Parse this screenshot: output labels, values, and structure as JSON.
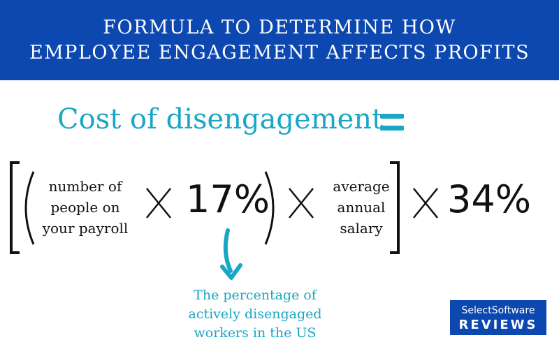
{
  "header": {
    "line1": "FORMULA TO DETERMINE HOW",
    "line2": "EMPLOYEE ENGAGEMENT AFFECTS PROFITS"
  },
  "equation": {
    "lhs": "Cost of disengagement",
    "term1": [
      "number of",
      "people on",
      "your payroll"
    ],
    "percent1": "17%",
    "term2": [
      "average",
      "annual",
      "salary"
    ],
    "percent2": "34%"
  },
  "annotation": {
    "lines": [
      "The percentage of",
      "actively disengaged",
      "workers in the US"
    ]
  },
  "logo": {
    "line1": "SelectSoftware",
    "line2": "REVIEWS"
  },
  "colors": {
    "header_bg": "#0d47b0",
    "accent": "#1aa7c6",
    "text": "#111111"
  }
}
